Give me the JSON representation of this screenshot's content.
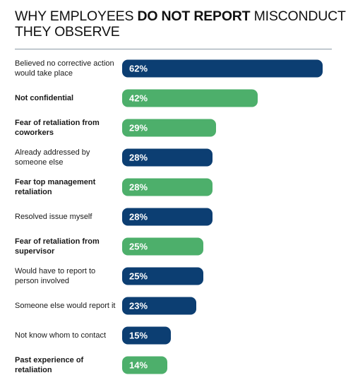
{
  "chart_data": {
    "type": "bar",
    "title": [
      "WHY EMPLOYEES",
      "DO NOT REPORT",
      "MISCONDUCT",
      "THEY OBSERVE"
    ],
    "categories": [
      "Believed no corrective action would take place",
      "Not confidential",
      "Fear of retaliation from coworkers",
      "Already addressed by someone else",
      "Fear top management retaliation",
      "Resolved issue myself",
      "Fear of retaliation from supervisor",
      "Would have to report to person involved",
      "Someone else would report it",
      "Not know whom to contact",
      "Past experience of retaliation"
    ],
    "values": [
      62,
      42,
      29,
      28,
      28,
      28,
      25,
      25,
      23,
      15,
      14
    ],
    "value_labels": [
      "62%",
      "42%",
      "29%",
      "28%",
      "28%",
      "28%",
      "25%",
      "25%",
      "23%",
      "15%",
      "14%"
    ],
    "highlighted": [
      false,
      true,
      true,
      false,
      true,
      false,
      true,
      false,
      false,
      false,
      true
    ],
    "colors": {
      "base": "#0c3e72",
      "highlight": "#4daf6b"
    }
  }
}
